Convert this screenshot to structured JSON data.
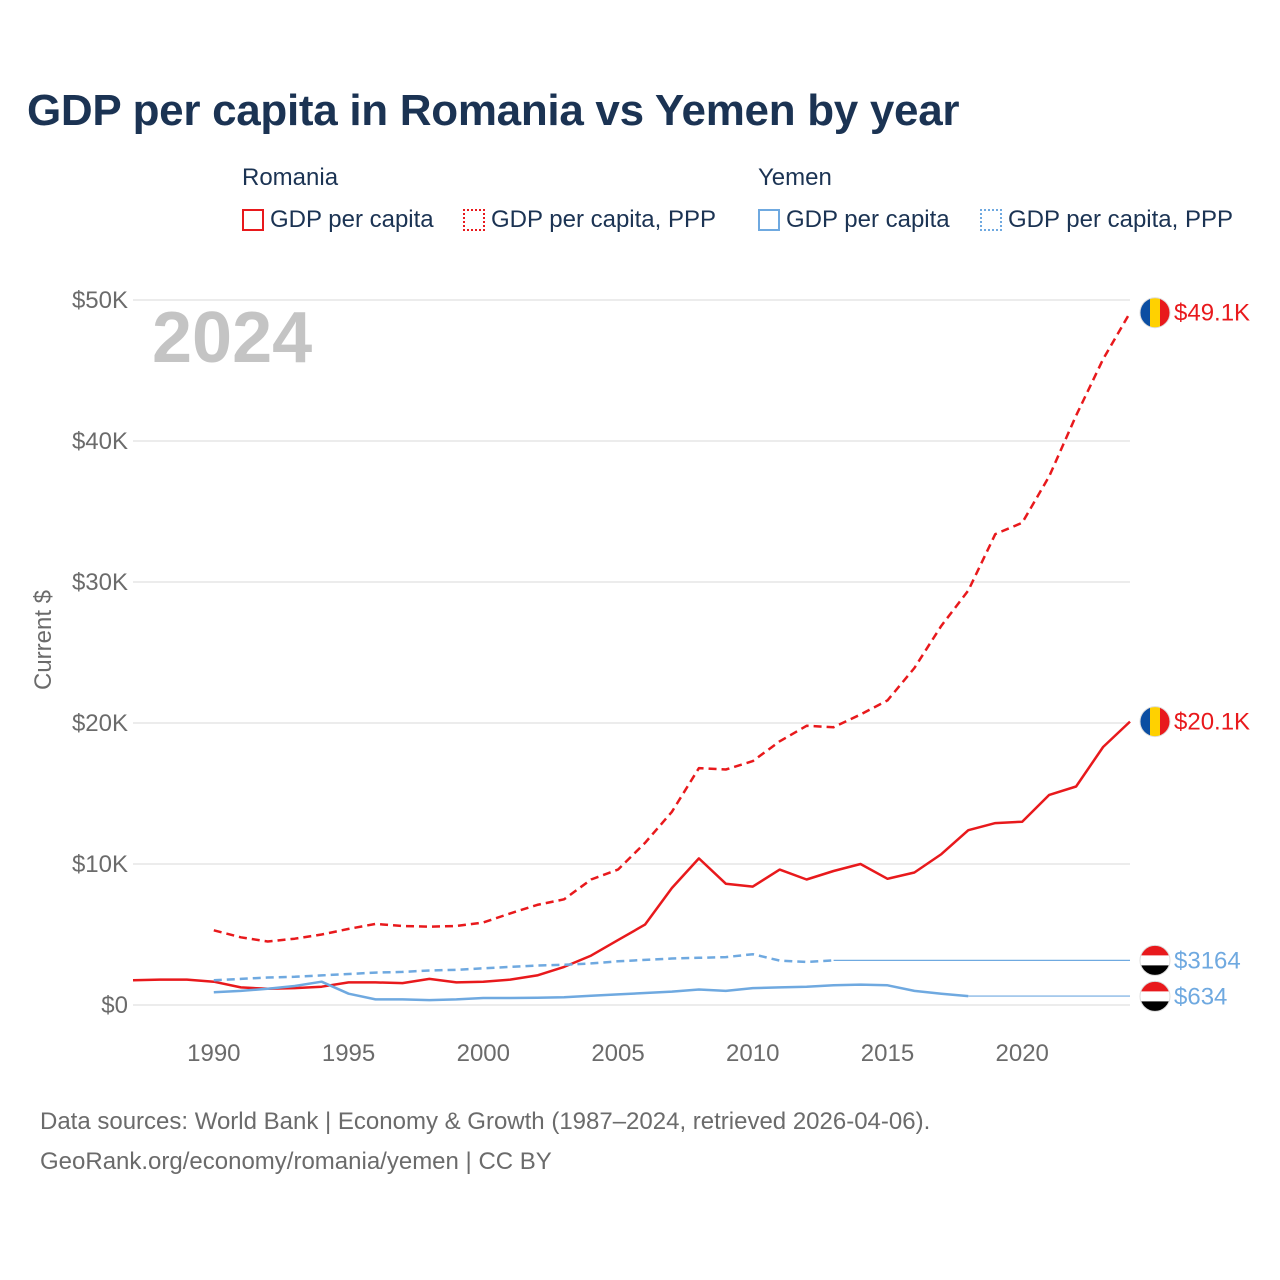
{
  "title": "GDP per capita in Romania vs Yemen by year",
  "legend": {
    "groups": [
      {
        "name": "Romania",
        "items": [
          {
            "label": "GDP per capita",
            "style": "solid",
            "color": "#e8191c"
          },
          {
            "label": "GDP per capita, PPP",
            "style": "dotted",
            "color": "#e8191c"
          }
        ]
      },
      {
        "name": "Yemen",
        "items": [
          {
            "label": "GDP per capita",
            "style": "solid",
            "color": "#6fa9e0"
          },
          {
            "label": "GDP per capita, PPP",
            "style": "dotted",
            "color": "#6fa9e0"
          }
        ]
      }
    ]
  },
  "year_label": "2024",
  "footer": {
    "line1": "Data sources: World Bank | Economy & Growth (1987–2024, retrieved 2026-04-06).",
    "line2": "GeoRank.org/economy/romania/yemen | CC BY"
  },
  "chart_data": {
    "type": "line",
    "title": "GDP per capita in Romania vs Yemen by year",
    "xlabel": "",
    "ylabel": "Current $",
    "xlim": [
      1987,
      2024
    ],
    "ylim": [
      0,
      50000
    ],
    "xticks": [
      1990,
      1995,
      2000,
      2005,
      2010,
      2015,
      2020
    ],
    "xtick_labels": [
      "1990",
      "1995",
      "2000",
      "2005",
      "2010",
      "2015",
      "2020"
    ],
    "yticks": [
      0,
      10000,
      20000,
      30000,
      40000,
      50000
    ],
    "ytick_labels": [
      "$0",
      "$10K",
      "$20K",
      "$30K",
      "$40K",
      "$50K"
    ],
    "grid": true,
    "legend_position": "top",
    "series": [
      {
        "name": "Romania GDP per capita",
        "color": "#e8191c",
        "dash": "solid",
        "end_label": "$20.1K",
        "x": [
          1987,
          1988,
          1989,
          1990,
          1991,
          1992,
          1993,
          1994,
          1995,
          1996,
          1997,
          1998,
          1999,
          2000,
          2001,
          2002,
          2003,
          2004,
          2005,
          2006,
          2007,
          2008,
          2009,
          2010,
          2011,
          2012,
          2013,
          2014,
          2015,
          2016,
          2017,
          2018,
          2019,
          2020,
          2021,
          2022,
          2023,
          2024
        ],
        "y": [
          1750,
          1800,
          1800,
          1650,
          1250,
          1150,
          1200,
          1300,
          1600,
          1600,
          1550,
          1850,
          1600,
          1650,
          1800,
          2100,
          2700,
          3500,
          4600,
          5700,
          8300,
          10400,
          8600,
          8400,
          9600,
          8900,
          9500,
          10000,
          8950,
          9400,
          10700,
          12400,
          12900,
          13000,
          14900,
          15500,
          18300,
          20100
        ]
      },
      {
        "name": "Romania GDP per capita, PPP",
        "color": "#e8191c",
        "dash": "dashed",
        "end_label": "$49.1K",
        "x": [
          1990,
          1991,
          1992,
          1993,
          1994,
          1995,
          1996,
          1997,
          1998,
          1999,
          2000,
          2001,
          2002,
          2003,
          2004,
          2005,
          2006,
          2007,
          2008,
          2009,
          2010,
          2011,
          2012,
          2013,
          2014,
          2015,
          2016,
          2017,
          2018,
          2019,
          2020,
          2021,
          2022,
          2023,
          2024
        ],
        "y": [
          5300,
          4800,
          4500,
          4700,
          5000,
          5400,
          5750,
          5600,
          5550,
          5600,
          5850,
          6500,
          7100,
          7500,
          8900,
          9600,
          11500,
          13700,
          16800,
          16700,
          17300,
          18700,
          19800,
          19700,
          20600,
          21600,
          23900,
          26900,
          29400,
          33400,
          34200,
          37500,
          41800,
          45800,
          49100
        ]
      },
      {
        "name": "Yemen GDP per capita",
        "color": "#6fa9e0",
        "dash": "solid",
        "end_label": "$634",
        "x": [
          1990,
          1991,
          1992,
          1993,
          1994,
          1995,
          1996,
          1997,
          1998,
          1999,
          2000,
          2001,
          2002,
          2003,
          2004,
          2005,
          2006,
          2007,
          2008,
          2009,
          2010,
          2011,
          2012,
          2013,
          2014,
          2015,
          2016,
          2017,
          2018
        ],
        "y": [
          900,
          1000,
          1150,
          1350,
          1650,
          800,
          400,
          400,
          350,
          400,
          500,
          500,
          520,
          550,
          650,
          750,
          850,
          950,
          1100,
          1000,
          1200,
          1250,
          1300,
          1400,
          1450,
          1400,
          1000,
          800,
          634
        ],
        "extend_to": 2024
      },
      {
        "name": "Yemen GDP per capita, PPP",
        "color": "#6fa9e0",
        "dash": "dashed",
        "end_label": "$3164",
        "x": [
          1990,
          1991,
          1992,
          1993,
          1994,
          1995,
          1996,
          1997,
          1998,
          1999,
          2000,
          2001,
          2002,
          2003,
          2004,
          2005,
          2006,
          2007,
          2008,
          2009,
          2010,
          2011,
          2012,
          2013
        ],
        "y": [
          1750,
          1850,
          1950,
          2000,
          2100,
          2200,
          2300,
          2350,
          2450,
          2500,
          2600,
          2700,
          2800,
          2850,
          2950,
          3100,
          3200,
          3300,
          3350,
          3400,
          3600,
          3150,
          3050,
          3164
        ],
        "extend_to": 2024
      }
    ]
  },
  "flags": {
    "romania": {
      "colors": [
        "#0b4ea2",
        "#ffd100",
        "#e8191c"
      ],
      "icon": "romania-flag-icon"
    },
    "yemen": {
      "colors": [
        "#e8191c",
        "#ffffff",
        "#000000"
      ],
      "icon": "yemen-flag-icon"
    }
  }
}
